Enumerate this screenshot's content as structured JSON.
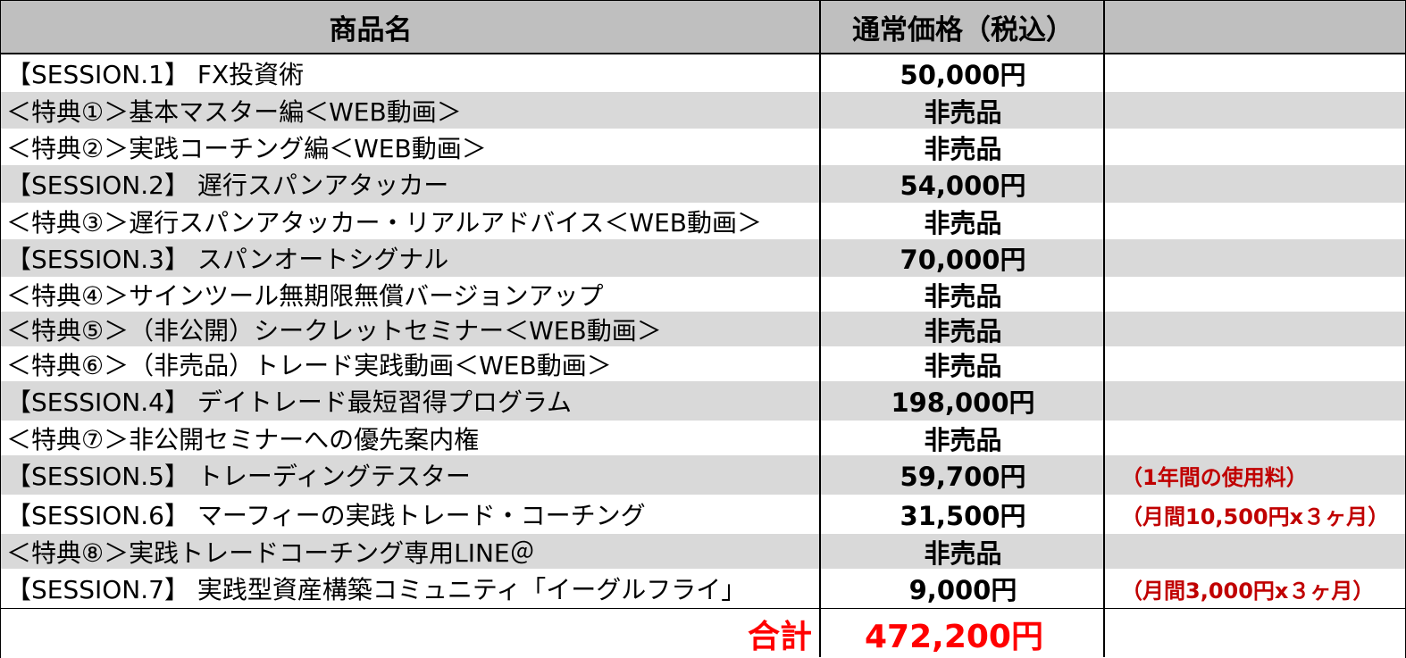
{
  "header": {
    "name": "商品名",
    "price": "通常価格（税込）",
    "note": ""
  },
  "rows": [
    {
      "name": "【SESSION.1】 FX投資術",
      "price": "50,000円",
      "note": ""
    },
    {
      "name": "＜特典①＞基本マスター編＜WEB動画＞",
      "price": "非売品",
      "note": ""
    },
    {
      "name": "＜特典②＞実践コーチング編＜WEB動画＞",
      "price": "非売品",
      "note": ""
    },
    {
      "name": "【SESSION.2】 遅行スパンアタッカー",
      "price": "54,000円",
      "note": ""
    },
    {
      "name": "＜特典③＞遅行スパンアタッカー・リアルアドバイス＜WEB動画＞",
      "price": "非売品",
      "note": ""
    },
    {
      "name": "【SESSION.3】 スパンオートシグナル",
      "price": "70,000円",
      "note": ""
    },
    {
      "name": "＜特典④＞サインツール無期限無償バージョンアップ",
      "price": "非売品",
      "note": ""
    },
    {
      "name": "＜特典⑤＞（非公開）シークレットセミナー＜WEB動画＞",
      "price": "非売品",
      "note": ""
    },
    {
      "name": "＜特典⑥＞（非売品）トレード実践動画＜WEB動画＞",
      "price": "非売品",
      "note": ""
    },
    {
      "name": "【SESSION.4】 デイトレード最短習得プログラム",
      "price": "198,000円",
      "note": ""
    },
    {
      "name": "＜特典⑦＞非公開セミナーへの優先案内権",
      "price": "非売品",
      "note": ""
    },
    {
      "name": "【SESSION.5】 トレーディングテスター",
      "price": "59,700円",
      "note": "（1年間の使用料）"
    },
    {
      "name": "【SESSION.6】 マーフィーの実践トレード・コーチング",
      "price": "31,500円",
      "note": "（月間10,500円x３ヶ月）"
    },
    {
      "name": "＜特典⑧＞実践トレードコーチング専用LINE＠",
      "price": "非売品",
      "note": ""
    },
    {
      "name": "【SESSION.7】 実践型資産構築コミュニティ「イーグルフライ」",
      "price": "9,000円",
      "note": "（月間3,000円x３ヶ月）"
    }
  ],
  "total": {
    "label": "合計",
    "price": "472,200円"
  }
}
